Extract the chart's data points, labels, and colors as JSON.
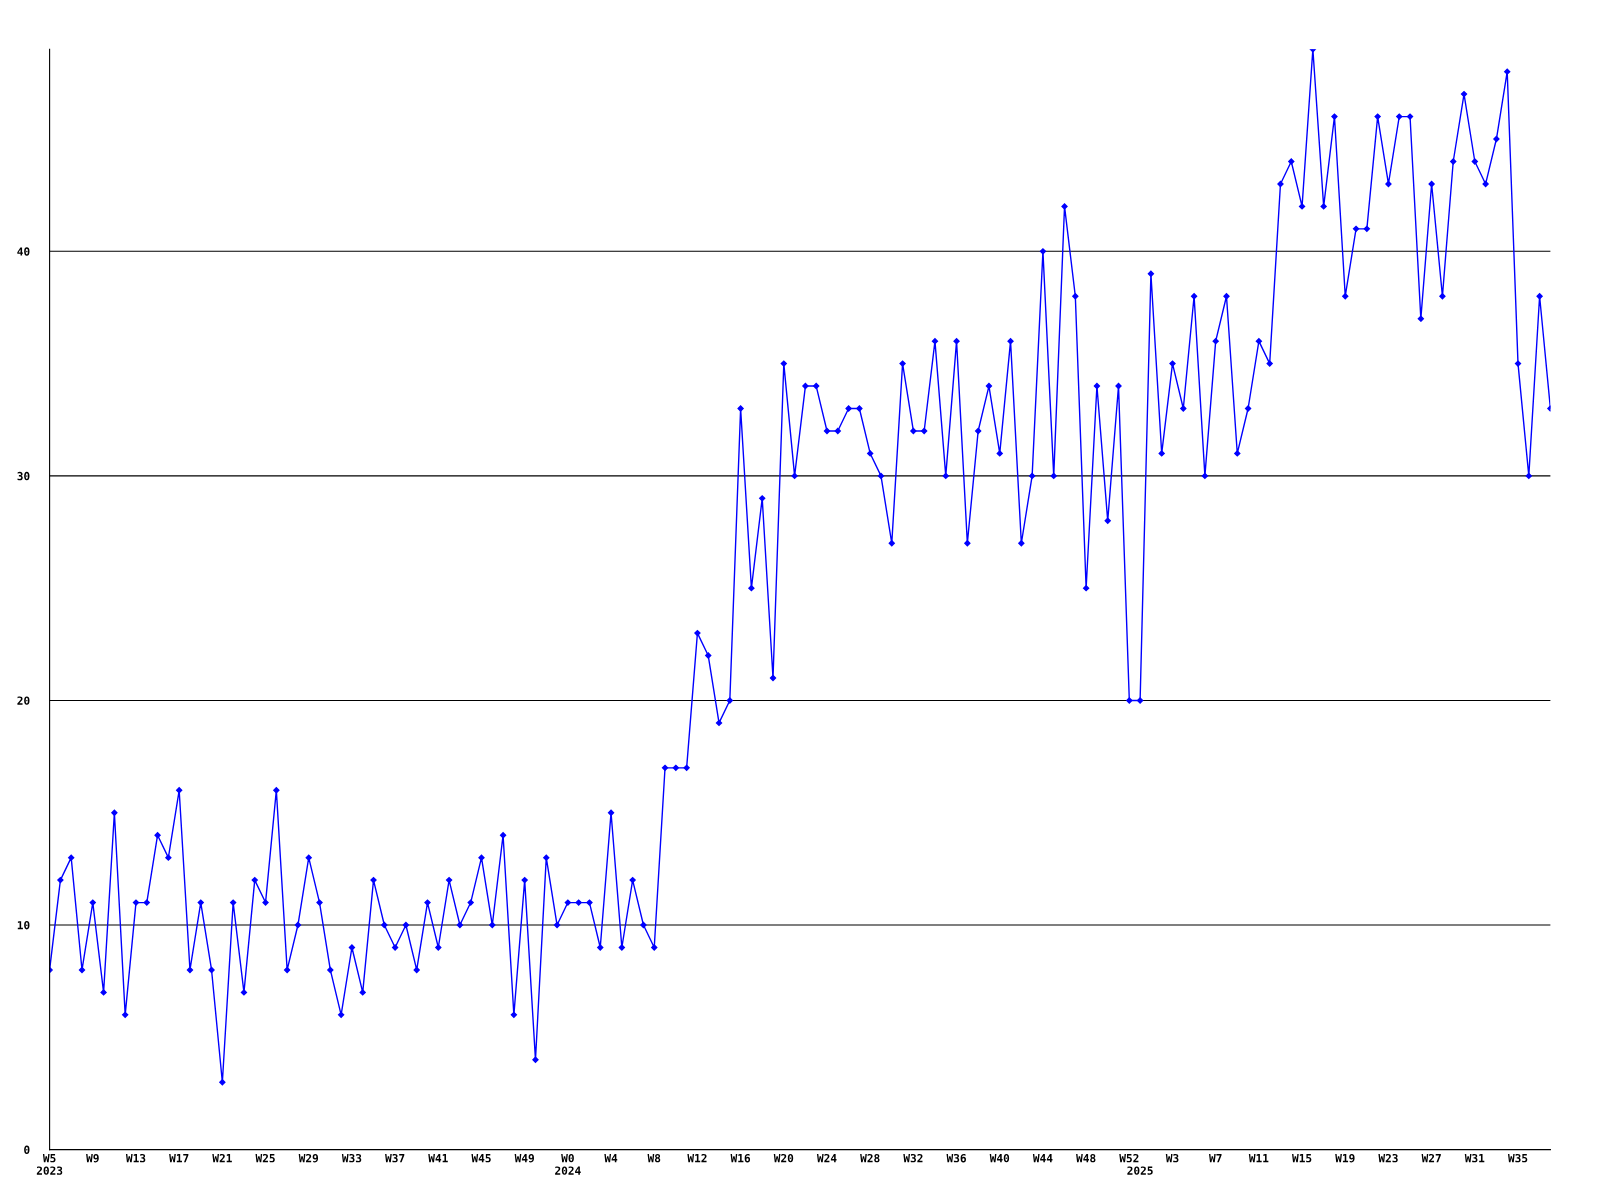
{
  "chart_data": {
    "type": "line",
    "categories": [
      "W5\n2023",
      null,
      null,
      null,
      "W9",
      null,
      null,
      null,
      "W13",
      null,
      null,
      null,
      "W17",
      null,
      null,
      null,
      "W21",
      null,
      null,
      null,
      "W25",
      null,
      null,
      null,
      "W29",
      null,
      null,
      null,
      "W33",
      null,
      null,
      null,
      "W37",
      null,
      null,
      null,
      "W41",
      null,
      null,
      null,
      "W45",
      null,
      null,
      null,
      "W49",
      null,
      null,
      null,
      "W0\n2024",
      null,
      null,
      null,
      "W4",
      null,
      null,
      null,
      "W8",
      null,
      null,
      null,
      "W12",
      null,
      null,
      null,
      "W16",
      null,
      null,
      null,
      "W20",
      null,
      null,
      null,
      "W24",
      null,
      null,
      null,
      "W28",
      null,
      null,
      null,
      "W32",
      null,
      null,
      null,
      "W36",
      null,
      null,
      null,
      "W40",
      null,
      null,
      null,
      "W44",
      null,
      null,
      null,
      "W48",
      null,
      null,
      null,
      "W52",
      "\n2025",
      null,
      null,
      "W3",
      null,
      null,
      null,
      "W7",
      null,
      null,
      null,
      "W11",
      null,
      null,
      null,
      "W15",
      null,
      null,
      null,
      "W19",
      null,
      null,
      null,
      "W23",
      null,
      null,
      null,
      "W27",
      null,
      null,
      null,
      "W31",
      null,
      null,
      null,
      "W35",
      null,
      null,
      null
    ],
    "series": [
      {
        "color": "#0000ff",
        "values": [
          8,
          12,
          13,
          8,
          11,
          7,
          15,
          6,
          11,
          11,
          14,
          13,
          16,
          8,
          11,
          8,
          3,
          11,
          7,
          12,
          11,
          16,
          8,
          10,
          13,
          11,
          8,
          6,
          9,
          7,
          12,
          10,
          9,
          10,
          8,
          11,
          9,
          12,
          10,
          11,
          13,
          10,
          14,
          6,
          12,
          4,
          13,
          10,
          11,
          11,
          11,
          9,
          15,
          9,
          12,
          10,
          9,
          17,
          17,
          17,
          23,
          22,
          19,
          20,
          33,
          25,
          29,
          21,
          35,
          30,
          34,
          34,
          32,
          32,
          33,
          33,
          31,
          30,
          27,
          35,
          32,
          32,
          36,
          30,
          36,
          27,
          32,
          34,
          31,
          36,
          27,
          30,
          40,
          30,
          42,
          38,
          25,
          34,
          28,
          34,
          20,
          20,
          39,
          31,
          35,
          33,
          38,
          30,
          36,
          38,
          31,
          33,
          36,
          35,
          43,
          44,
          42,
          49,
          42,
          46,
          38,
          41,
          41,
          46,
          43,
          46,
          46,
          37,
          43,
          38,
          44,
          47,
          44,
          43,
          45,
          48,
          35,
          30,
          38,
          33
        ]
      }
    ],
    "ylim": [
      0,
      49
    ],
    "yticks": [
      0,
      10,
      20,
      30,
      40
    ],
    "grid": "y",
    "marker": "diamond",
    "line_style": "solid",
    "legend": false
  }
}
